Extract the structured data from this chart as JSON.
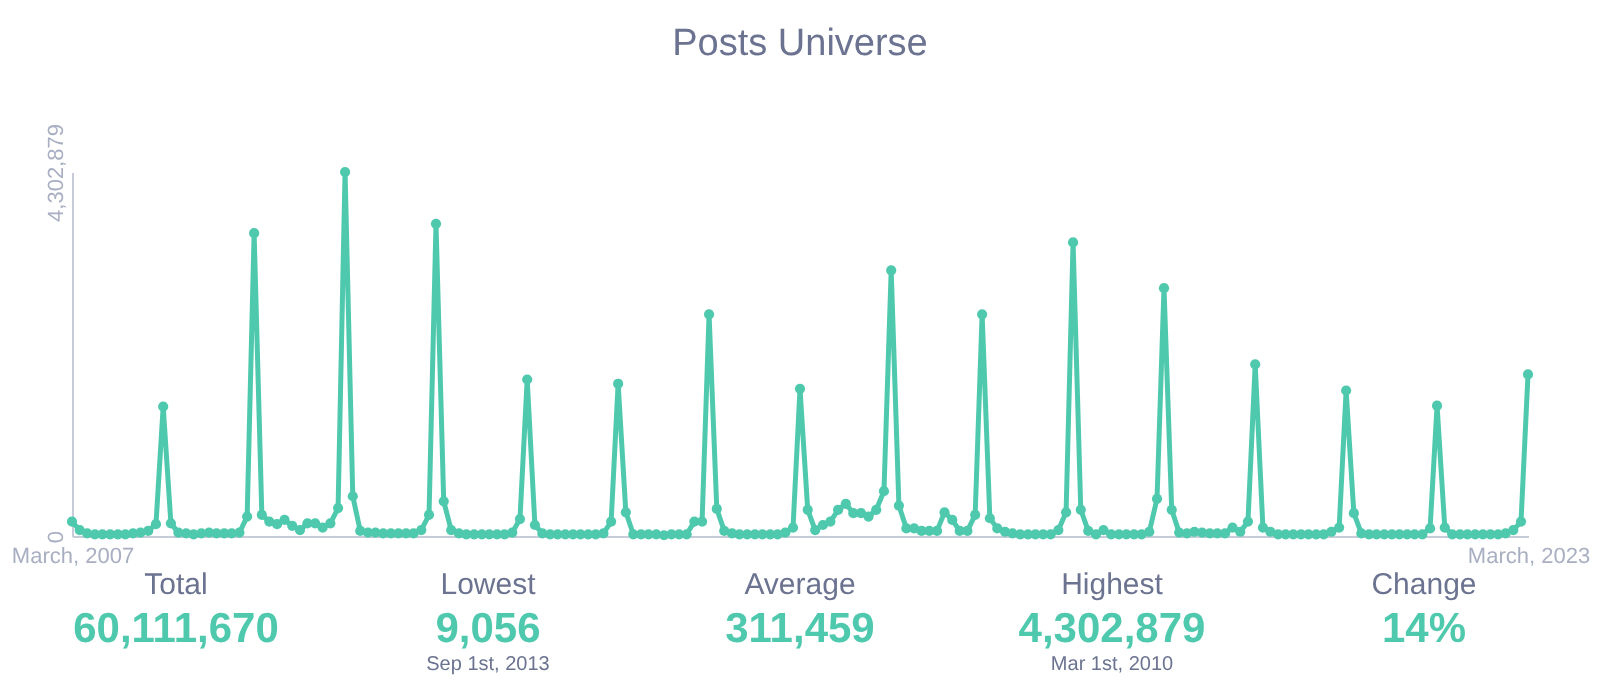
{
  "chart_data": {
    "type": "line",
    "title": "Posts Universe",
    "annotations": [
      "Total\n60,111,670",
      "Lowest\n9,056\nSep 1st, 2013",
      "Average\n311,459",
      "Highest\n4,302,879\nMar 1st, 2010",
      "Change\n14%"
    ],
    "x": [
      "2007-03",
      "2007-04",
      "2007-05",
      "2007-06",
      "2007-07",
      "2007-08",
      "2007-09",
      "2007-10",
      "2007-11",
      "2007-12",
      "2008-01",
      "2008-02",
      "2008-03",
      "2008-04",
      "2008-05",
      "2008-06",
      "2008-07",
      "2008-08",
      "2008-09",
      "2008-10",
      "2008-11",
      "2008-12",
      "2009-01",
      "2009-02",
      "2009-03",
      "2009-04",
      "2009-05",
      "2009-06",
      "2009-07",
      "2009-08",
      "2009-09",
      "2009-10",
      "2009-11",
      "2009-12",
      "2010-01",
      "2010-02",
      "2010-03",
      "2010-04",
      "2010-05",
      "2010-06",
      "2010-07",
      "2010-08",
      "2010-09",
      "2010-10",
      "2010-11",
      "2010-12",
      "2011-01",
      "2011-02",
      "2011-03",
      "2011-04",
      "2011-05",
      "2011-06",
      "2011-07",
      "2011-08",
      "2011-09",
      "2011-10",
      "2011-11",
      "2011-12",
      "2012-01",
      "2012-02",
      "2012-03",
      "2012-04",
      "2012-05",
      "2012-06",
      "2012-07",
      "2012-08",
      "2012-09",
      "2012-10",
      "2012-11",
      "2012-12",
      "2013-01",
      "2013-02",
      "2013-03",
      "2013-04",
      "2013-05",
      "2013-06",
      "2013-07",
      "2013-08",
      "2013-09",
      "2013-10",
      "2013-11",
      "2013-12",
      "2014-01",
      "2014-02",
      "2014-03",
      "2014-04",
      "2014-05",
      "2014-06",
      "2014-07",
      "2014-08",
      "2014-09",
      "2014-10",
      "2014-11",
      "2014-12",
      "2015-01",
      "2015-02",
      "2015-03",
      "2015-04",
      "2015-05",
      "2015-06",
      "2015-07",
      "2015-08",
      "2015-09",
      "2015-10",
      "2015-11",
      "2015-12",
      "2016-01",
      "2016-02",
      "2016-03",
      "2016-04",
      "2016-05",
      "2016-06",
      "2016-07",
      "2016-08",
      "2016-09",
      "2016-10",
      "2016-11",
      "2016-12",
      "2017-01",
      "2017-02",
      "2017-03",
      "2017-04",
      "2017-05",
      "2017-06",
      "2017-07",
      "2017-08",
      "2017-09",
      "2017-10",
      "2017-11",
      "2017-12",
      "2018-01",
      "2018-02",
      "2018-03",
      "2018-04",
      "2018-05",
      "2018-06",
      "2018-07",
      "2018-08",
      "2018-09",
      "2018-10",
      "2018-11",
      "2018-12",
      "2019-01",
      "2019-02",
      "2019-03",
      "2019-04",
      "2019-05",
      "2019-06",
      "2019-07",
      "2019-08",
      "2019-09",
      "2019-10",
      "2019-11",
      "2019-12",
      "2020-01",
      "2020-02",
      "2020-03",
      "2020-04",
      "2020-05",
      "2020-06",
      "2020-07",
      "2020-08",
      "2020-09",
      "2020-10",
      "2020-11",
      "2020-12",
      "2021-01",
      "2021-02",
      "2021-03",
      "2021-04",
      "2021-05",
      "2021-06",
      "2021-07",
      "2021-08",
      "2021-09",
      "2021-10",
      "2021-11",
      "2021-12",
      "2022-01",
      "2022-02",
      "2022-03",
      "2022-04",
      "2022-05",
      "2022-06",
      "2022-07",
      "2022-08",
      "2022-09",
      "2022-10",
      "2022-11",
      "2022-12",
      "2023-01",
      "2023-02",
      "2023-03"
    ],
    "series": [
      {
        "color": "#4fc9ad",
        "values": [
          170000,
          70000,
          30000,
          20000,
          20000,
          20000,
          20000,
          20000,
          30000,
          40000,
          60000,
          140000,
          1530000,
          150000,
          40000,
          30000,
          20000,
          30000,
          40000,
          30000,
          30000,
          30000,
          40000,
          230000,
          3580000,
          250000,
          170000,
          140000,
          190000,
          120000,
          70000,
          150000,
          150000,
          100000,
          150000,
          330000,
          4302879,
          470000,
          60000,
          40000,
          40000,
          30000,
          30000,
          30000,
          30000,
          30000,
          70000,
          250000,
          3690000,
          410000,
          70000,
          30000,
          20000,
          20000,
          20000,
          20000,
          20000,
          20000,
          40000,
          200000,
          1850000,
          130000,
          30000,
          20000,
          20000,
          20000,
          20000,
          20000,
          20000,
          20000,
          30000,
          170000,
          1800000,
          280000,
          20000,
          20000,
          20000,
          20000,
          9056,
          20000,
          20000,
          20000,
          170000,
          170000,
          2620000,
          320000,
          60000,
          30000,
          20000,
          20000,
          20000,
          20000,
          20000,
          20000,
          40000,
          100000,
          1740000,
          310000,
          70000,
          130000,
          170000,
          310000,
          380000,
          270000,
          270000,
          230000,
          310000,
          530000,
          3140000,
          360000,
          90000,
          90000,
          60000,
          60000,
          60000,
          280000,
          190000,
          60000,
          60000,
          250000,
          2620000,
          210000,
          90000,
          50000,
          30000,
          20000,
          20000,
          20000,
          20000,
          20000,
          70000,
          280000,
          3470000,
          310000,
          60000,
          20000,
          70000,
          20000,
          20000,
          20000,
          20000,
          20000,
          50000,
          440000,
          2930000,
          310000,
          40000,
          30000,
          50000,
          40000,
          30000,
          30000,
          30000,
          100000,
          50000,
          170000,
          2030000,
          100000,
          50000,
          20000,
          20000,
          20000,
          20000,
          20000,
          20000,
          20000,
          50000,
          100000,
          1720000,
          270000,
          30000,
          20000,
          20000,
          20000,
          20000,
          20000,
          20000,
          20000,
          20000,
          90000,
          1540000,
          100000,
          20000,
          20000,
          20000,
          20000,
          20000,
          20000,
          20000,
          30000,
          70000,
          170000,
          1910000
        ]
      }
    ],
    "xlim": [
      "2007-03",
      "2023-03"
    ],
    "xticks": [
      {
        "value": "2007-03",
        "label": "March, 2007"
      },
      {
        "value": "2023-03",
        "label": "March, 2023"
      }
    ],
    "ylim": [
      0,
      4302879
    ],
    "yticks": [
      0,
      {
        "value": 4302879,
        "label": "4,302,879"
      }
    ],
    "marker": "circle",
    "line_style": "solid"
  }
}
